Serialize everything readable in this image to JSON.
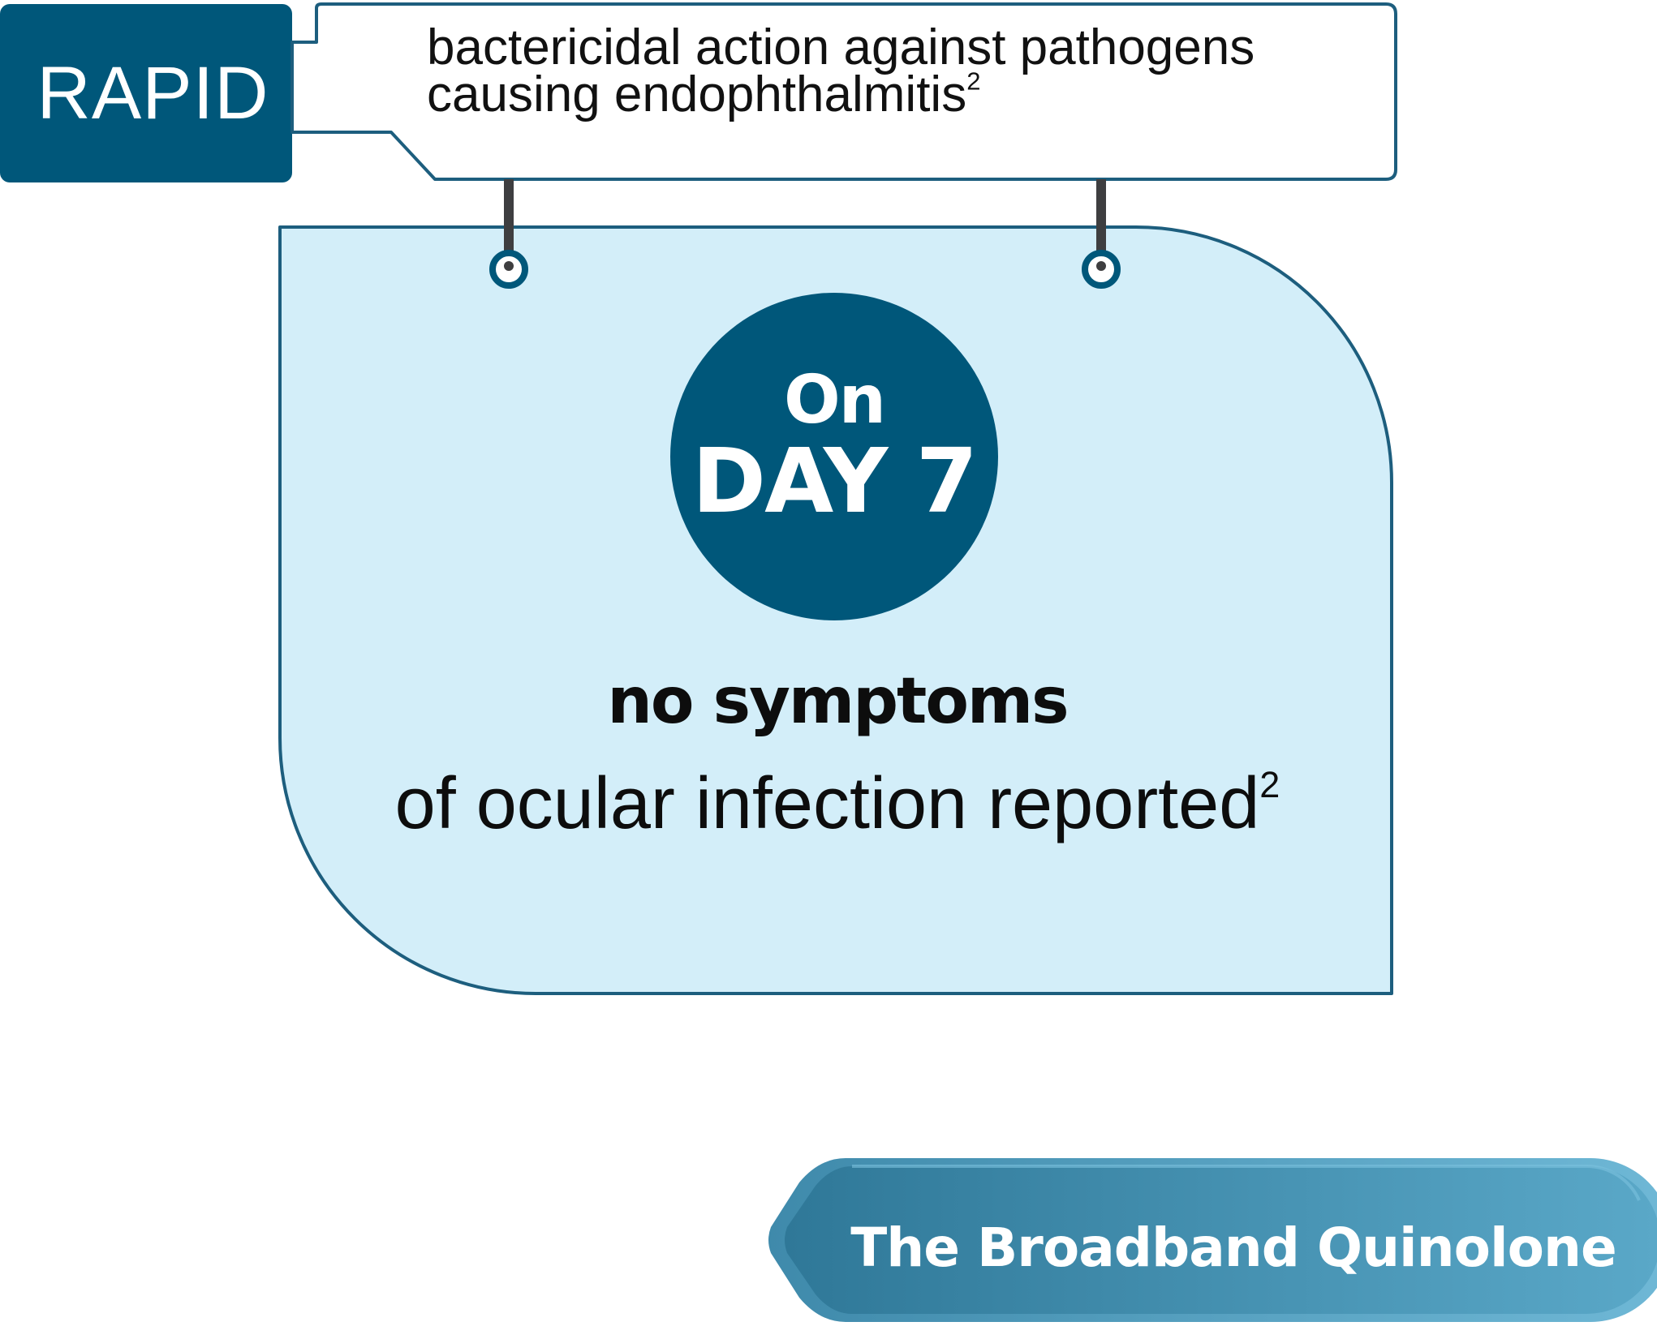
{
  "badge": {
    "label": "RAPID"
  },
  "callout": {
    "line1": "bactericidal action against pathogens",
    "line2": "causing endophthalmitis",
    "line2_ref": "2"
  },
  "circle": {
    "line1": "On",
    "line2": "DAY 7"
  },
  "result": {
    "headline": "no symptoms",
    "subline": "of ocular infection reported",
    "subline_ref": "2"
  },
  "brand_tab": {
    "label": "The Broadband Quinolone"
  },
  "colors": {
    "primary_dark_blue": "#00577a",
    "panel_fill": "#d3eef9",
    "panel_stroke": "#1d5e7e",
    "hanger_gray": "#3e3e40",
    "tab_gradient_start": "#2f7898",
    "tab_gradient_end": "#5aa8c8"
  }
}
